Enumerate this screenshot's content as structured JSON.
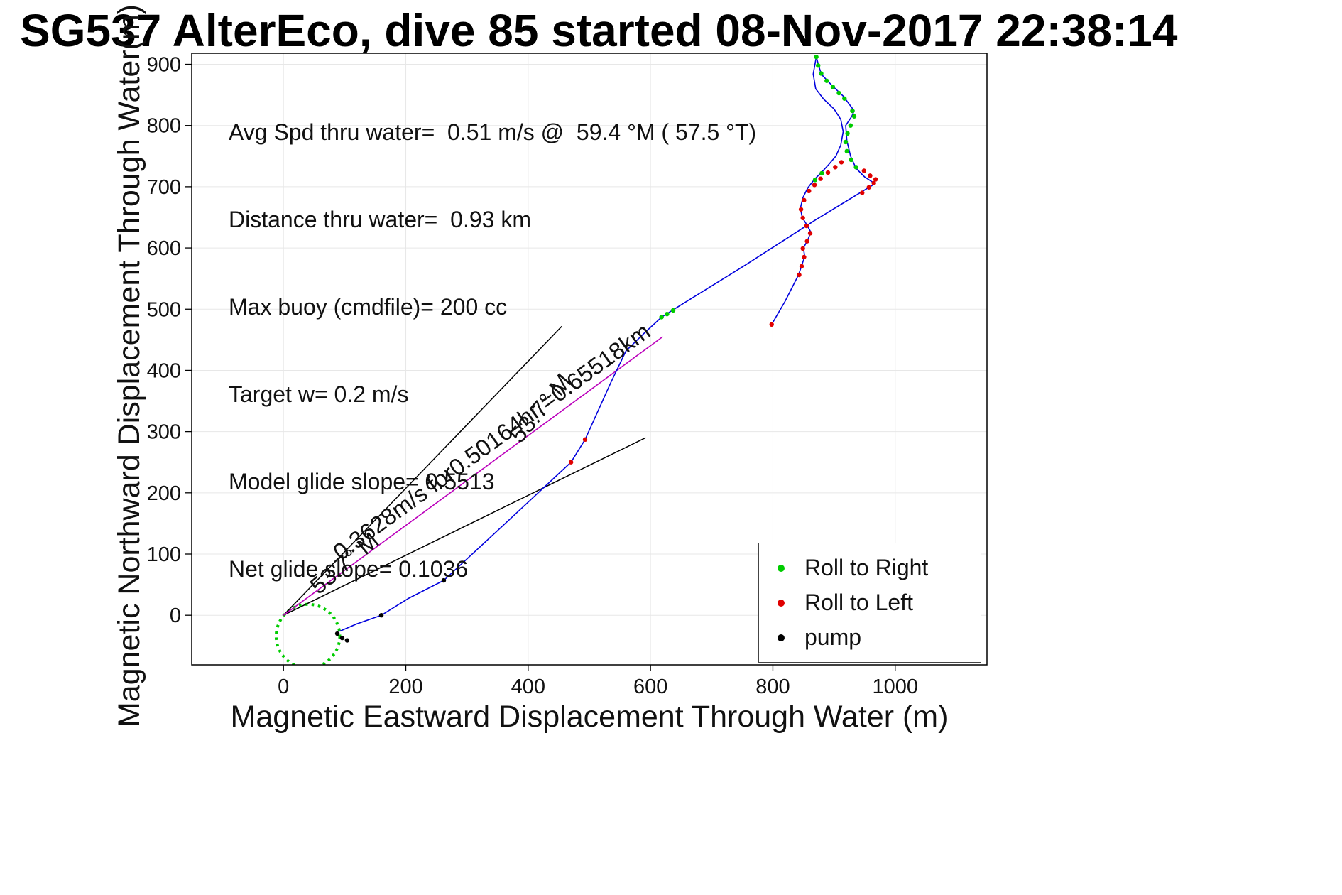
{
  "title": "SG537 AlterEco, dive 85 started 08-Nov-2017 22:38:14",
  "stats": {
    "lines": [
      "Avg Spd thru water=  0.51 m/s @  59.4 °M ( 57.5 °T)",
      "Distance thru water=  0.93 km",
      "Max buoy (cmdfile)= 200 cc",
      "Target w= 0.2 m/s",
      "Model glide slope= 0.5513",
      "Net glide slope= 0.1036"
    ]
  },
  "legend": {
    "items": [
      {
        "label": "Roll to Right",
        "color": "#00cc00"
      },
      {
        "label": "Roll to Left",
        "color": "#e00000"
      },
      {
        "label": "pump",
        "color": "#000000"
      }
    ]
  },
  "chart_data": {
    "type": "line",
    "title": "SG537 AlterEco, dive 85 started 08-Nov-2017 22:38:14",
    "xlabel": "Magnetic Eastward Displacement Through Water (m)",
    "ylabel": "Magnetic Northward Displacement Through Water(m)",
    "xlim": [
      -150,
      1150
    ],
    "ylim": [
      -81,
      918
    ],
    "xticks": [
      0,
      200,
      400,
      600,
      800,
      1000
    ],
    "yticks": [
      0,
      100,
      200,
      300,
      400,
      500,
      600,
      700,
      800,
      900
    ],
    "grid": true,
    "line_color": "#0000dd",
    "vector_color": "#bb00bb",
    "start_loop": {
      "cx": 40,
      "cy": -34,
      "r": 52,
      "color": "#00cc00"
    },
    "vector_line": [
      [
        0,
        0
      ],
      [
        620,
        455
      ]
    ],
    "bearing_lines": [
      [
        [
          0,
          0
        ],
        [
          455,
          472
        ]
      ],
      [
        [
          0,
          0
        ],
        [
          592,
          290
        ]
      ]
    ],
    "annotations": [
      {
        "text": "0.3628m/s for0.50164hr =0.65518km",
        "x": 348,
        "y": 273,
        "rotation": -36
      },
      {
        "text": "53.7° M",
        "x": 430,
        "y": 330,
        "rotation": -50
      },
      {
        "text": "53.7° M",
        "x": 108,
        "y": 75,
        "rotation": -40
      }
    ],
    "trajectory": {
      "outbound": [
        [
          92,
          -26
        ],
        [
          120,
          -14
        ],
        [
          160,
          0
        ],
        [
          205,
          28
        ],
        [
          262,
          57
        ],
        [
          368,
          155
        ],
        [
          470,
          250
        ],
        [
          493,
          287
        ],
        [
          535,
          380
        ],
        [
          560,
          432
        ],
        [
          592,
          463
        ],
        [
          618,
          487
        ],
        [
          650,
          507
        ],
        [
          755,
          572
        ],
        [
          870,
          646
        ],
        [
          967,
          705
        ],
        [
          950,
          716
        ],
        [
          936,
          730
        ],
        [
          927,
          750
        ],
        [
          921,
          775
        ],
        [
          919,
          800
        ],
        [
          929,
          815
        ],
        [
          933,
          824
        ],
        [
          915,
          848
        ],
        [
          896,
          866
        ],
        [
          879,
          884
        ],
        [
          871,
          912
        ]
      ],
      "inbound": [
        [
          871,
          912
        ],
        [
          866,
          884
        ],
        [
          870,
          860
        ],
        [
          883,
          843
        ],
        [
          900,
          827
        ],
        [
          911,
          810
        ],
        [
          915,
          790
        ],
        [
          911,
          768
        ],
        [
          903,
          750
        ],
        [
          891,
          736
        ],
        [
          880,
          724
        ],
        [
          868,
          712
        ],
        [
          857,
          698
        ],
        [
          849,
          682
        ],
        [
          845,
          665
        ],
        [
          848,
          650
        ],
        [
          856,
          637
        ],
        [
          862,
          626
        ],
        [
          857,
          613
        ],
        [
          850,
          600
        ],
        [
          852,
          586
        ],
        [
          847,
          571
        ],
        [
          842,
          556
        ],
        [
          820,
          513
        ],
        [
          798,
          475
        ]
      ]
    },
    "markers": {
      "roll_right": [
        [
          618,
          487
        ],
        [
          627,
          492
        ],
        [
          637,
          498
        ],
        [
          871,
          912
        ],
        [
          874,
          898
        ],
        [
          879,
          885
        ],
        [
          888,
          873
        ],
        [
          898,
          863
        ],
        [
          908,
          853
        ],
        [
          917,
          844
        ],
        [
          930,
          824
        ],
        [
          933,
          815
        ],
        [
          927,
          800
        ],
        [
          922,
          787
        ],
        [
          919,
          773
        ],
        [
          921,
          758
        ],
        [
          928,
          744
        ],
        [
          936,
          732
        ],
        [
          880,
          722
        ],
        [
          869,
          711
        ]
      ],
      "roll_left": [
        [
          470,
          250
        ],
        [
          493,
          287
        ],
        [
          798,
          475
        ],
        [
          843,
          556
        ],
        [
          847,
          570
        ],
        [
          851,
          585
        ],
        [
          849,
          599
        ],
        [
          856,
          611
        ],
        [
          861,
          624
        ],
        [
          855,
          636
        ],
        [
          849,
          649
        ],
        [
          846,
          663
        ],
        [
          851,
          678
        ],
        [
          859,
          693
        ],
        [
          868,
          703
        ],
        [
          878,
          713
        ],
        [
          890,
          723
        ],
        [
          902,
          732
        ],
        [
          912,
          740
        ],
        [
          946,
          690
        ],
        [
          957,
          699
        ],
        [
          965,
          706
        ],
        [
          968,
          712
        ],
        [
          959,
          718
        ],
        [
          949,
          726
        ]
      ],
      "pump": [
        [
          88,
          -30
        ],
        [
          96,
          -37
        ],
        [
          104,
          -41
        ],
        [
          160,
          0
        ],
        [
          262,
          57
        ]
      ]
    }
  }
}
